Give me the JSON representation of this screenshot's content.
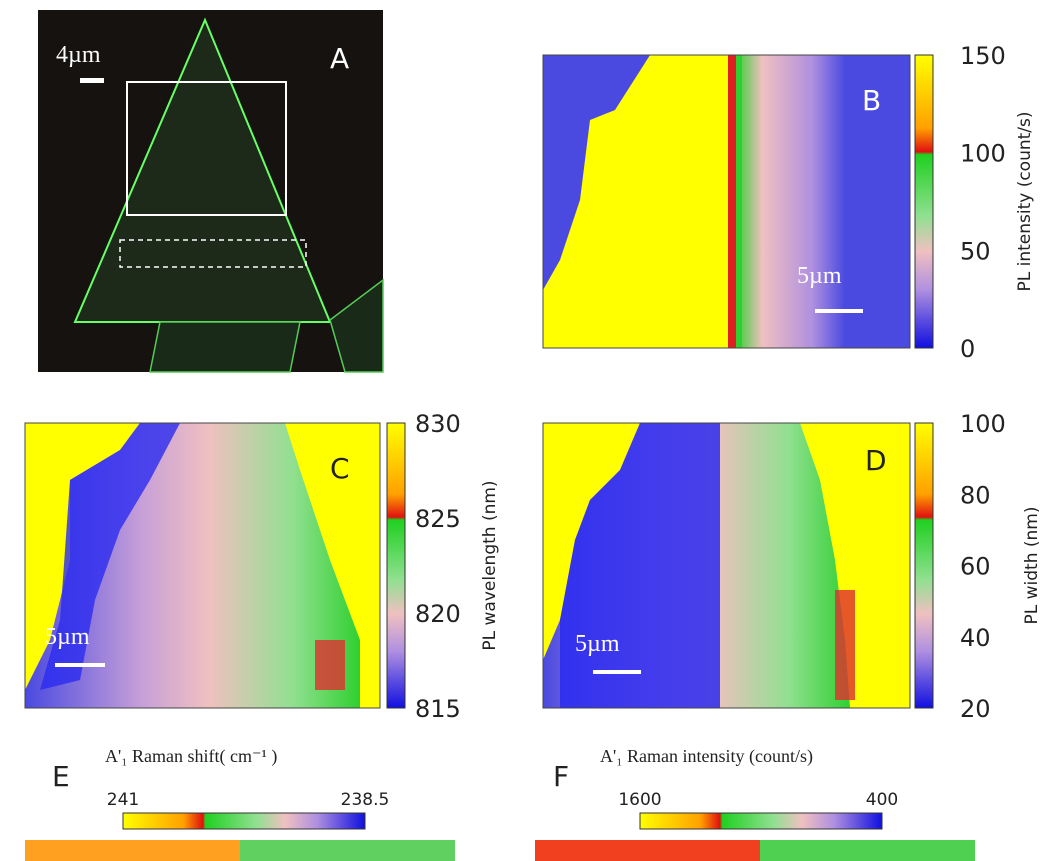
{
  "panels": [
    {
      "label": "A",
      "scale_bar": "4µm"
    },
    {
      "label": "B",
      "scale_bar": "5µm",
      "colorbar": {
        "label": "PL intensity (count/s)",
        "ticks": [
          150,
          100,
          50,
          0
        ]
      }
    },
    {
      "label": "C",
      "scale_bar": "5µm",
      "colorbar": {
        "label": "PL wavelength (nm)",
        "ticks": [
          830,
          825,
          820,
          815
        ]
      }
    },
    {
      "label": "D",
      "scale_bar": "5µm",
      "colorbar": {
        "label": "PL width (nm)",
        "ticks": [
          100,
          80,
          60,
          40,
          20
        ]
      }
    },
    {
      "label": "E",
      "colorbar": {
        "label": "A'₁ Raman shift( cm⁻¹ )",
        "ticks": [
          241,
          238.5
        ]
      }
    },
    {
      "label": "F",
      "colorbar": {
        "label": "A'₁ Raman intensity (count/s)",
        "ticks": [
          1600,
          400
        ]
      }
    }
  ]
}
